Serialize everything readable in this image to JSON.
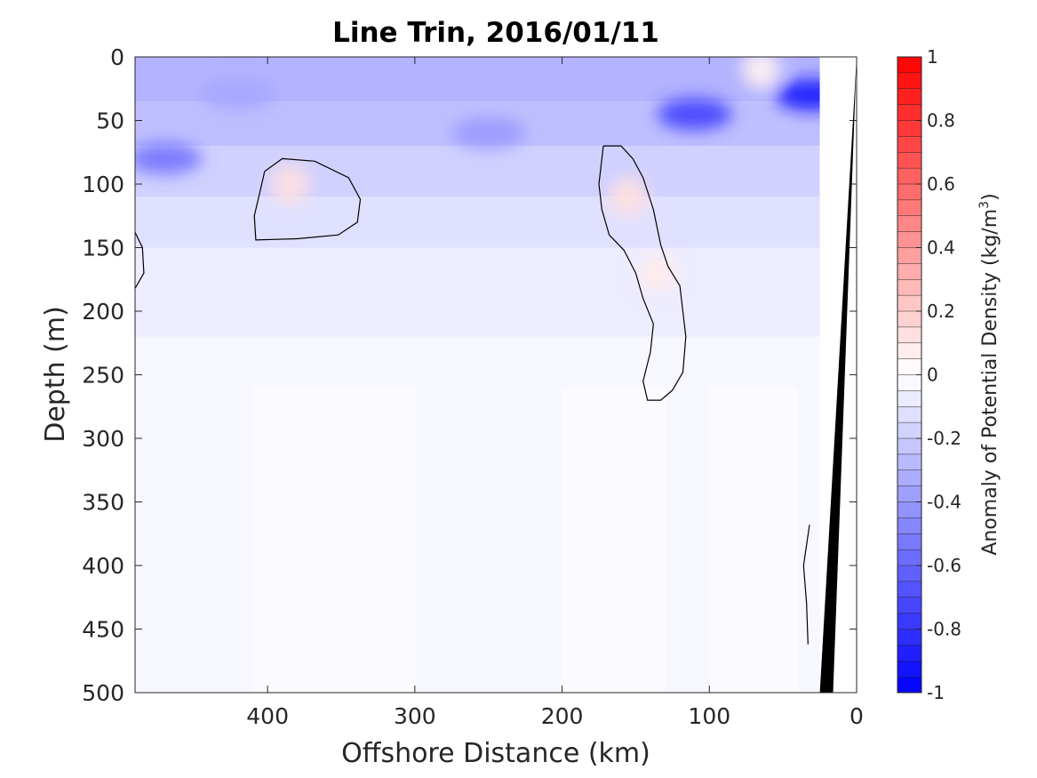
{
  "chart_data": {
    "type": "heatmap",
    "title": "Line Trin, 2016/01/11",
    "xlabel": "Offshore Distance (km)",
    "ylabel": "Depth (m)",
    "xlim": [
      490,
      0
    ],
    "ylim": [
      0,
      500
    ],
    "x_reversed": true,
    "y_reversed": true,
    "x_ticks": [
      400,
      300,
      200,
      100,
      0
    ],
    "x_tick_labels": [
      "400",
      "300",
      "200",
      "100",
      "0"
    ],
    "y_ticks": [
      0,
      50,
      100,
      150,
      200,
      250,
      300,
      350,
      400,
      450,
      500
    ],
    "y_tick_labels": [
      "0",
      "50",
      "100",
      "150",
      "200",
      "250",
      "300",
      "350",
      "400",
      "450",
      "500"
    ],
    "colorbar": {
      "label": "Anomaly of Potential Density (kg/m",
      "label_superscript": "3",
      "label_suffix": ")",
      "range": [
        -1,
        1
      ],
      "levels": 40,
      "ticks": [
        1,
        0.8,
        0.6,
        0.4,
        0.2,
        0,
        -0.2,
        -0.4,
        -0.6,
        -0.8,
        -1
      ],
      "tick_labels": [
        "1",
        "0.8",
        "0.6",
        "0.4",
        "0.2",
        "0",
        "-0.2",
        "-0.4",
        "-0.6",
        "-0.8",
        "-1"
      ],
      "colors": {
        "negative": "#0000ff",
        "zero": "#ffffff",
        "positive": "#ff0000"
      }
    },
    "anomaly_features": [
      {
        "kind": "negative",
        "x": 470,
        "depth": 80,
        "value": -0.55
      },
      {
        "kind": "negative",
        "x": 420,
        "depth": 30,
        "value": -0.35
      },
      {
        "kind": "negative",
        "x": 250,
        "depth": 60,
        "value": -0.4
      },
      {
        "kind": "negative",
        "x": 110,
        "depth": 45,
        "value": -0.75
      },
      {
        "kind": "negative",
        "x": 30,
        "depth": 30,
        "value": -0.9
      },
      {
        "kind": "positive",
        "x": 385,
        "depth": 100,
        "value": 0.12
      },
      {
        "kind": "positive",
        "x": 155,
        "depth": 110,
        "value": 0.12
      },
      {
        "kind": "positive",
        "x": 135,
        "depth": 170,
        "value": 0.08
      },
      {
        "kind": "positive",
        "x": 65,
        "depth": 10,
        "value": 0.05
      }
    ],
    "zero_contours": [
      [
        [
          402,
          90
        ],
        [
          390,
          80
        ],
        [
          368,
          82
        ],
        [
          345,
          95
        ],
        [
          337,
          112
        ],
        [
          339,
          130
        ],
        [
          352,
          140
        ],
        [
          380,
          143
        ],
        [
          408,
          144
        ],
        [
          409,
          125
        ],
        [
          405,
          105
        ],
        [
          402,
          90
        ]
      ],
      [
        [
          172,
          70
        ],
        [
          160,
          70
        ],
        [
          152,
          80
        ],
        [
          145,
          95
        ],
        [
          138,
          120
        ],
        [
          133,
          148
        ],
        [
          128,
          165
        ],
        [
          120,
          180
        ],
        [
          116,
          220
        ],
        [
          118,
          248
        ],
        [
          125,
          262
        ],
        [
          133,
          270
        ],
        [
          142,
          270
        ],
        [
          145,
          255
        ],
        [
          140,
          232
        ],
        [
          138,
          210
        ],
        [
          145,
          190
        ],
        [
          150,
          170
        ],
        [
          158,
          152
        ],
        [
          168,
          140
        ],
        [
          173,
          120
        ],
        [
          175,
          100
        ],
        [
          172,
          70
        ]
      ],
      [
        [
          490,
          138
        ],
        [
          485,
          150
        ],
        [
          484,
          170
        ],
        [
          490,
          182
        ]
      ],
      [
        [
          32,
          368
        ],
        [
          36,
          400
        ],
        [
          34,
          430
        ],
        [
          33,
          462
        ]
      ],
      [
        [
          25,
          182
        ],
        [
          21,
          185
        ]
      ]
    ],
    "bathymetry_polygon": [
      [
        0,
        0
      ],
      [
        16,
        500
      ],
      [
        25,
        500
      ],
      [
        0,
        0
      ]
    ],
    "bathymetry_color": "#000000"
  }
}
